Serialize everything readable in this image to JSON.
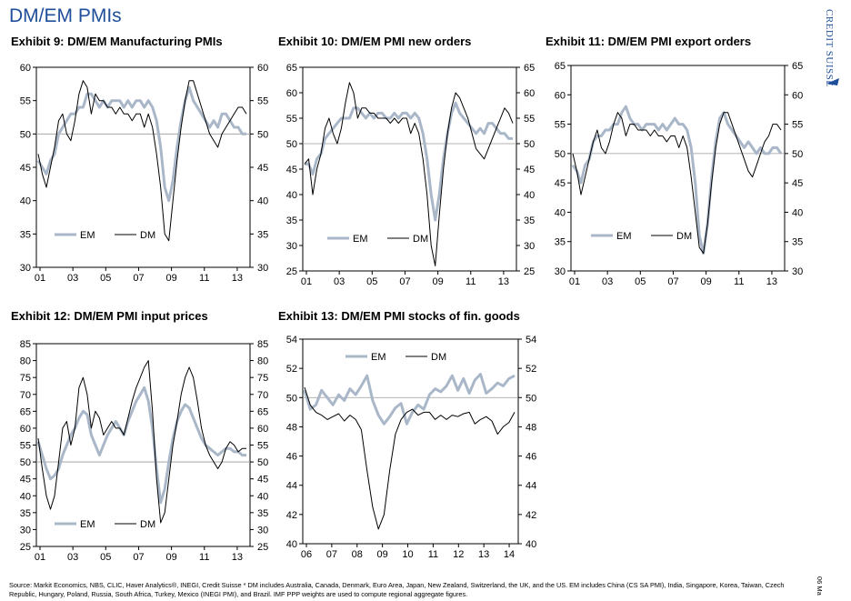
{
  "page_title": "DM/EM PMIs",
  "brand": "Credit Suisse",
  "date_stamp": "06 Ma",
  "footnote": "Source: Markit Economics, NBS, CLIC, Haver Analytics®, INEGI, Credit Suisse  * DM includes Australia, Canada, Denmark, Euro Area, Japan, New Zealand, Switzerland, the UK, and the US. EM includes China (CS SA PMI), India, Singapore, Korea, Taiwan, Czech Republic, Hungary, Poland, Russia, South Africa, Turkey, Mexico (INEGI PMI), and Brazil. IMF PPP weights are used to compute regional aggregate figures.",
  "colors": {
    "em": "#a9b7c9",
    "dm": "#000000",
    "ref": "#9a9a9a",
    "title": "#1f4e9a"
  },
  "chart_data": [
    {
      "id": "ex9",
      "type": "line",
      "title": "Exhibit 9: DM/EM Manufacturing PMIs",
      "x_ticks": [
        "01",
        "03",
        "05",
        "07",
        "09",
        "11",
        "13"
      ],
      "ylim": [
        30,
        60
      ],
      "y_ticks": [
        30,
        35,
        40,
        45,
        50,
        55,
        60
      ],
      "ref_line": 50,
      "legend": [
        "EM",
        "DM"
      ],
      "legend_placement": "bottom-left",
      "series": [
        {
          "name": "EM",
          "values": [
            46,
            45,
            44,
            46,
            47,
            50,
            51,
            52,
            53,
            53,
            54,
            54,
            56,
            56,
            55,
            54,
            55,
            54,
            55,
            55,
            55,
            54,
            55,
            54,
            55,
            55,
            54,
            55,
            54,
            52,
            48,
            42,
            40,
            43,
            48,
            52,
            55,
            57,
            55,
            54,
            53,
            52,
            51,
            52,
            51,
            53,
            53,
            52,
            51,
            51,
            50,
            50
          ]
        },
        {
          "name": "DM",
          "values": [
            47,
            44,
            42,
            45,
            48,
            52,
            53,
            50,
            49,
            52,
            56,
            58,
            57,
            53,
            56,
            55,
            55,
            54,
            54,
            53,
            54,
            53,
            53,
            52,
            53,
            53,
            51,
            53,
            51,
            47,
            42,
            35,
            34,
            40,
            46,
            51,
            55,
            58,
            58,
            56,
            54,
            52,
            50,
            49,
            48,
            50,
            51,
            52,
            53,
            54,
            54,
            53
          ]
        }
      ]
    },
    {
      "id": "ex10",
      "type": "line",
      "title": "Exhibit 10: DM/EM PMI new orders",
      "x_ticks": [
        "01",
        "03",
        "05",
        "07",
        "09",
        "11",
        "13"
      ],
      "ylim": [
        25,
        65
      ],
      "y_ticks": [
        25,
        30,
        35,
        40,
        45,
        50,
        55,
        60,
        65
      ],
      "ref_line": 50,
      "legend": [
        "EM",
        "DM"
      ],
      "legend_placement": "bottom-center",
      "series": [
        {
          "name": "EM",
          "values": [
            46,
            46,
            44,
            47,
            48,
            51,
            52,
            53,
            54,
            55,
            55,
            55,
            57,
            57,
            56,
            55,
            56,
            55,
            56,
            56,
            55,
            55,
            56,
            55,
            56,
            56,
            55,
            56,
            55,
            52,
            47,
            40,
            35,
            40,
            47,
            52,
            56,
            58,
            56,
            55,
            54,
            53,
            52,
            53,
            52,
            54,
            54,
            53,
            52,
            52,
            51,
            51
          ]
        },
        {
          "name": "DM",
          "values": [
            46,
            47,
            40,
            45,
            48,
            53,
            55,
            52,
            50,
            53,
            58,
            62,
            60,
            55,
            57,
            57,
            56,
            56,
            55,
            55,
            55,
            54,
            55,
            54,
            55,
            55,
            52,
            54,
            52,
            47,
            40,
            30,
            26,
            36,
            45,
            52,
            57,
            60,
            59,
            57,
            55,
            52,
            49,
            48,
            47,
            49,
            51,
            53,
            55,
            57,
            56,
            54
          ]
        }
      ]
    },
    {
      "id": "ex11",
      "type": "line",
      "title": "Exhibit 11: DM/EM PMI export orders",
      "x_ticks": [
        "01",
        "03",
        "05",
        "07",
        "09",
        "11",
        "13"
      ],
      "ylim": [
        30,
        65
      ],
      "y_ticks": [
        30,
        35,
        40,
        45,
        50,
        55,
        60,
        65
      ],
      "ref_line": 50,
      "legend": [
        "EM",
        "DM"
      ],
      "legend_placement": "bottom-center",
      "series": [
        {
          "name": "EM",
          "values": [
            48,
            47,
            45,
            48,
            49,
            52,
            53,
            53,
            54,
            54,
            55,
            55,
            57,
            58,
            56,
            55,
            55,
            54,
            55,
            55,
            55,
            54,
            55,
            54,
            55,
            56,
            55,
            55,
            54,
            51,
            45,
            36,
            33,
            38,
            46,
            52,
            56,
            57,
            55,
            54,
            53,
            52,
            51,
            52,
            51,
            50,
            51,
            50,
            50,
            51,
            51,
            50
          ]
        },
        {
          "name": "DM",
          "values": [
            50,
            47,
            43,
            46,
            49,
            52,
            54,
            51,
            50,
            52,
            55,
            57,
            56,
            53,
            55,
            55,
            54,
            54,
            54,
            53,
            54,
            53,
            53,
            52,
            53,
            53,
            51,
            53,
            51,
            46,
            40,
            34,
            33,
            38,
            45,
            51,
            55,
            57,
            57,
            55,
            53,
            51,
            49,
            47,
            46,
            48,
            50,
            52,
            53,
            55,
            55,
            54
          ]
        }
      ]
    },
    {
      "id": "ex12",
      "type": "line",
      "title": "Exhibit 12: DM/EM PMI input prices",
      "x_ticks": [
        "01",
        "03",
        "05",
        "07",
        "09",
        "11",
        "13"
      ],
      "ylim": [
        25,
        85
      ],
      "y_ticks": [
        25,
        30,
        35,
        40,
        45,
        50,
        55,
        60,
        65,
        70,
        75,
        80,
        85
      ],
      "ref_line": 50,
      "legend": [
        "EM",
        "DM"
      ],
      "legend_placement": "bottom-left",
      "series": [
        {
          "name": "EM",
          "values": [
            56,
            52,
            48,
            45,
            46,
            48,
            52,
            55,
            58,
            60,
            63,
            65,
            64,
            58,
            55,
            52,
            55,
            58,
            60,
            62,
            60,
            58,
            62,
            65,
            68,
            70,
            72,
            68,
            60,
            48,
            38,
            42,
            50,
            57,
            62,
            65,
            67,
            66,
            63,
            60,
            57,
            55,
            54,
            53,
            52,
            53,
            54,
            54,
            53,
            53,
            52,
            52
          ]
        },
        {
          "name": "DM",
          "values": [
            57,
            48,
            40,
            36,
            40,
            50,
            60,
            62,
            55,
            60,
            72,
            75,
            70,
            60,
            65,
            63,
            58,
            60,
            62,
            60,
            60,
            58,
            63,
            68,
            72,
            75,
            78,
            80,
            65,
            45,
            32,
            35,
            45,
            55,
            62,
            70,
            75,
            78,
            75,
            68,
            60,
            55,
            52,
            50,
            48,
            50,
            54,
            56,
            55,
            53,
            54,
            54
          ]
        }
      ]
    },
    {
      "id": "ex13",
      "type": "line",
      "title": "Exhibit 13: DM/EM PMI stocks of fin. goods",
      "x_ticks": [
        "06",
        "07",
        "08",
        "09",
        "10",
        "11",
        "12",
        "13",
        "14"
      ],
      "ylim": [
        40,
        54
      ],
      "y_ticks": [
        40,
        42,
        44,
        46,
        48,
        50,
        52,
        54
      ],
      "ref_line": 50,
      "legend": [
        "EM",
        "DM"
      ],
      "legend_placement": "top-center",
      "series": [
        {
          "name": "EM",
          "values": [
            50.5,
            49.2,
            49.5,
            50.5,
            50,
            49.5,
            50.2,
            49.8,
            50.6,
            50.2,
            50.8,
            51.5,
            49.8,
            48.8,
            48.2,
            48.7,
            49.3,
            49.6,
            48.2,
            49,
            49.5,
            49.2,
            50.2,
            50.6,
            50.4,
            50.8,
            51.5,
            50.5,
            51.3,
            50.3,
            51.2,
            51.6,
            50.3,
            50.6,
            51,
            50.8,
            51.3,
            51.5
          ]
        },
        {
          "name": "DM",
          "values": [
            50.7,
            49.5,
            49,
            48.8,
            48.5,
            48.7,
            48.9,
            48.4,
            48.8,
            48.5,
            47.8,
            45,
            42.5,
            41,
            42,
            45,
            47.5,
            48.5,
            49,
            49.2,
            48.8,
            49,
            49,
            48.5,
            48.8,
            48.5,
            48.8,
            48.7,
            48.9,
            49,
            48.2,
            48.5,
            48.7,
            48.4,
            47.5,
            48,
            48.3,
            49
          ]
        }
      ]
    }
  ]
}
